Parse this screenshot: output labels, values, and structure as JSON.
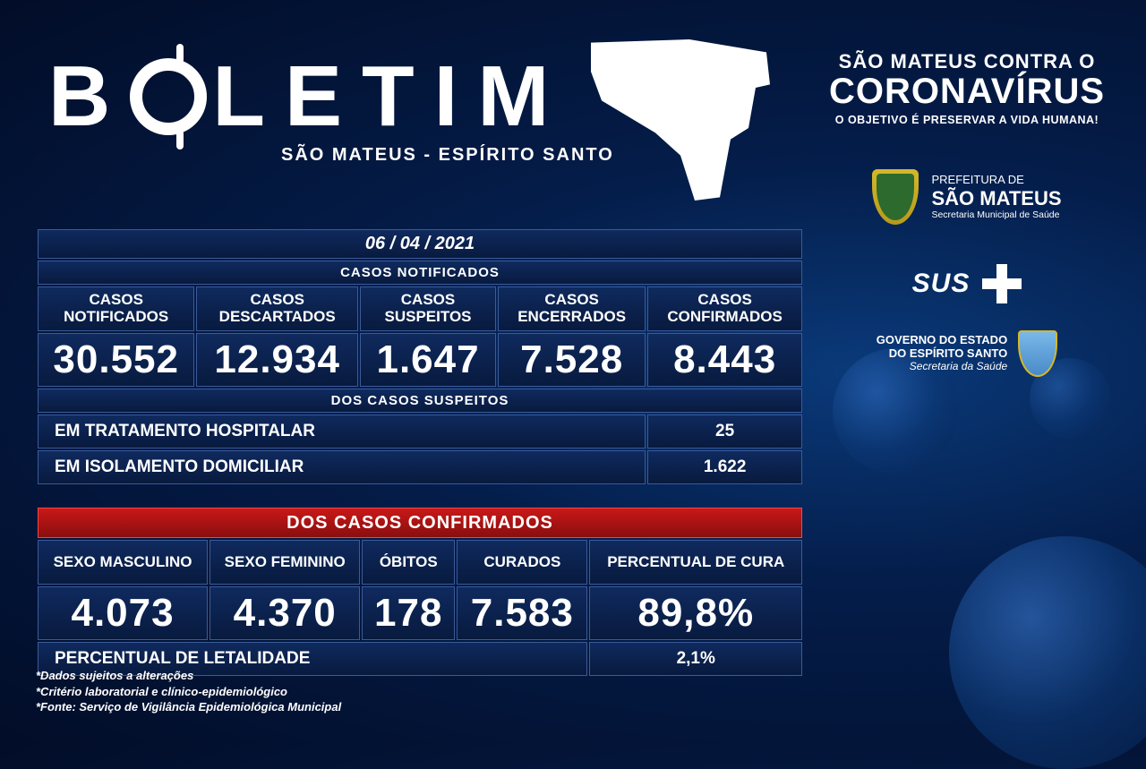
{
  "title": {
    "letters_before_o": "B",
    "letters_after_o": "LETIM",
    "subtitle": "SÃO MATEUS - ESPÍRITO SANTO"
  },
  "slogan": {
    "line1": "SÃO MATEUS CONTRA O",
    "line2": "CORONAVÍRUS",
    "line3": "O OBJETIVO É PRESERVAR A VIDA HUMANA!"
  },
  "prefeitura": {
    "line1": "PREFEITURA DE",
    "line2": "SÃO MATEUS",
    "line3": "Secretaria Municipal de Saúde"
  },
  "sus_label": "SUS",
  "governo": {
    "line1": "GOVERNO DO ESTADO",
    "line2": "DO ESPÍRITO SANTO",
    "line3": "Secretaria da Saúde"
  },
  "date": "06 / 04 / 2021",
  "notificados": {
    "section_label": "CASOS NOTIFICADOS",
    "headers": [
      "CASOS NOTIFICADOS",
      "CASOS DESCARTADOS",
      "CASOS SUSPEITOS",
      "CASOS ENCERRADOS",
      "CASOS CONFIRMADOS"
    ],
    "values": [
      "30.552",
      "12.934",
      "1.647",
      "7.528",
      "8.443"
    ]
  },
  "suspeitos": {
    "section_label": "DOS CASOS SUSPEITOS",
    "rows": [
      {
        "label": "EM TRATAMENTO HOSPITALAR",
        "value": "25"
      },
      {
        "label": "EM ISOLAMENTO DOMICILIAR",
        "value": "1.622"
      }
    ]
  },
  "confirmados": {
    "section_label": "DOS CASOS CONFIRMADOS",
    "headers": [
      "SEXO MASCULINO",
      "SEXO FEMININO",
      "ÓBITOS",
      "CURADOS",
      "PERCENTUAL DE CURA"
    ],
    "values": [
      "4.073",
      "4.370",
      "178",
      "7.583",
      "89,8%"
    ],
    "letalidade_label": "PERCENTUAL DE LETALIDADE",
    "letalidade_value": "2,1%"
  },
  "footnotes": [
    "*Dados sujeitos a alterações",
    "*Critério laboratorial e clínico-epidemiológico",
    "*Fonte: Serviço de Vigilância Epidemiológica Municipal"
  ],
  "colors": {
    "bg_outer": "#020d28",
    "bg_inner": "#0a3a7a",
    "cell_top": "#0f2a5e",
    "cell_bottom": "#081a3e",
    "cell_border": "#3a5a9a",
    "red_top": "#c91818",
    "red_bottom": "#8a0e0e",
    "red_border": "#e84a4a",
    "white": "#ffffff"
  }
}
